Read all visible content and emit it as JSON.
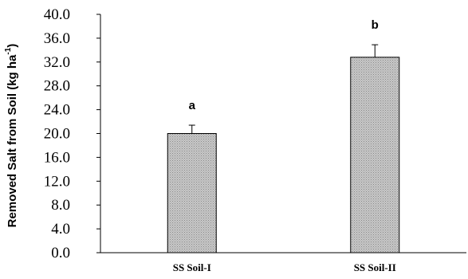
{
  "chart_data": {
    "type": "bar",
    "title": "",
    "xlabel": "",
    "ylabel": "Removed Salt from Soil (kg ha",
    "ylabel_superscript": "-1",
    "ylabel_close": ")",
    "categories": [
      "SS Soil-I",
      "SS Soil-II"
    ],
    "values": [
      20.0,
      32.8
    ],
    "error_plus": [
      1.4,
      2.1
    ],
    "significance_letters": [
      "a",
      "b"
    ],
    "ylim": [
      0,
      40
    ],
    "yticks": [
      "0.0",
      "4.0",
      "8.0",
      "12.0",
      "16.0",
      "20.0",
      "24.0",
      "28.0",
      "32.0",
      "36.0",
      "40.0"
    ],
    "grid": false,
    "legend": "none",
    "bar_color": "#c0c0c0",
    "bar_pattern": "dotted",
    "axis_color": "#000000"
  }
}
